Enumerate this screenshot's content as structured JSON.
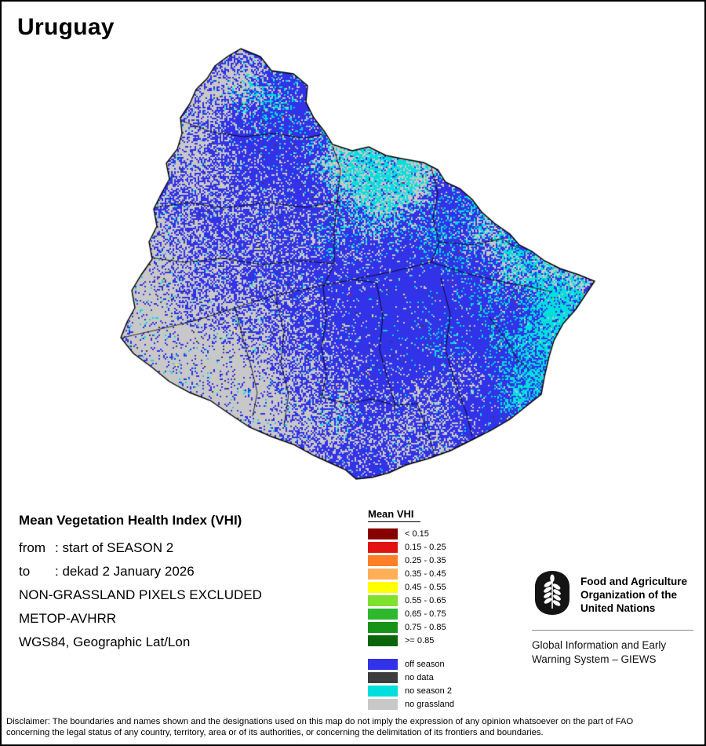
{
  "title": "Uruguay",
  "info": {
    "heading": "Mean Vegetation Health Index (VHI)",
    "from_label": "from",
    "from_value": ": start of SEASON 2",
    "to_label": "to",
    "to_value": ": dekad 2 January 2026",
    "note1": "NON-GRASSLAND PIXELS EXCLUDED",
    "note2": "METOP-AVHRR",
    "note3": "WGS84, Geographic Lat/Lon"
  },
  "legend": {
    "title": "Mean VHI",
    "classes": [
      {
        "label": "< 0.15",
        "color": "#870000"
      },
      {
        "label": "0.15 - 0.25",
        "color": "#e31212"
      },
      {
        "label": "0.25 - 0.35",
        "color": "#ff7f26"
      },
      {
        "label": "0.35 - 0.45",
        "color": "#ffaf58"
      },
      {
        "label": "0.45 - 0.55",
        "color": "#ffff00"
      },
      {
        "label": "0.55 - 0.65",
        "color": "#80e02e"
      },
      {
        "label": "0.65 - 0.75",
        "color": "#2eb82e"
      },
      {
        "label": "0.75 - 0.85",
        "color": "#179417"
      },
      {
        "label": ">= 0.85",
        "color": "#0b660b"
      }
    ],
    "season_classes": [
      {
        "label": "off season",
        "color": "#3232e8"
      },
      {
        "label": "no data",
        "color": "#3d3d3d"
      },
      {
        "label": "no season 2",
        "color": "#00dede"
      },
      {
        "label": "no grassland",
        "color": "#c8c8c8"
      }
    ]
  },
  "footer": {
    "org_name": "Food and Agriculture\nOrganization of the\nUnited Nations",
    "giews_name": "Global Information and Early\nWarning System – GIEWS"
  },
  "disclaimer": "Disclaimer: The boundaries and names shown and the designations used on this map do not imply the expression of any opinion whatsoever on the part of FAO\nconcerning the legal status of any country, territory, area or of its authorities, or concerning the delimitation of its frontiers and boundaries.",
  "map": {
    "colors": {
      "off_season": "#3232e8",
      "no_season_2": "#00dede",
      "no_grassland": "#c8c8c8",
      "no_data": "#3d3d3d",
      "border": "#000000"
    }
  }
}
